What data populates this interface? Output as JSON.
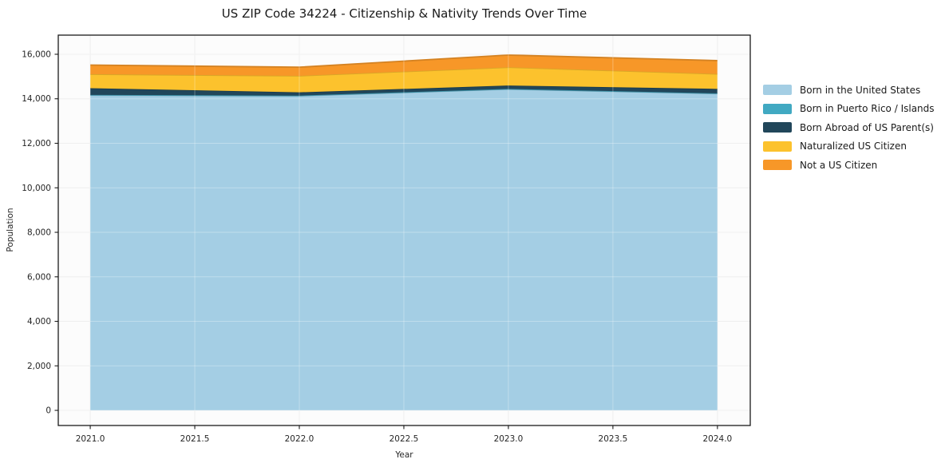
{
  "title": "US ZIP Code 34224 - Citizenship & Nativity Trends Over Time",
  "chart_data": {
    "type": "area",
    "stacked": true,
    "title": "US ZIP Code 34224 - Citizenship & Nativity Trends Over Time",
    "xlabel": "Year",
    "ylabel": "Population",
    "x": [
      2021,
      2022,
      2023,
      2024
    ],
    "series": [
      {
        "name": "Born in the United States",
        "color": "#a4cee4",
        "values": [
          14160,
          14130,
          14430,
          14230
        ]
      },
      {
        "name": "Born in Puerto Rico / Islands",
        "color": "#41a9c2",
        "values": [
          15,
          15,
          15,
          15
        ]
      },
      {
        "name": "Born Abroad of US Parent(s)",
        "color": "#21465a",
        "values": [
          300,
          145,
          150,
          200
        ]
      },
      {
        "name": "Naturalized US Citizen",
        "color": "#fcc22d",
        "values": [
          630,
          740,
          820,
          670
        ]
      },
      {
        "name": "Not a US Citizen",
        "color": "#f79728",
        "values": [
          410,
          390,
          550,
          600
        ]
      }
    ],
    "totals": [
      15515,
      15420,
      15965,
      15715
    ],
    "x_ticks": {
      "values": [
        2021.0,
        2021.5,
        2022.0,
        2022.5,
        2023.0,
        2023.5,
        2024.0
      ],
      "labels": [
        "2021.0",
        "2021.5",
        "2022.0",
        "2022.5",
        "2023.0",
        "2023.5",
        "2024.0"
      ]
    },
    "y_ticks": {
      "values": [
        0,
        2000,
        4000,
        6000,
        8000,
        10000,
        12000,
        14000,
        16000
      ],
      "labels": [
        "0",
        "2,000",
        "4,000",
        "6,000",
        "8,000",
        "10,000",
        "12,000",
        "14,000",
        "16,000"
      ]
    },
    "xlim": [
      2020.847,
      2024.157
    ],
    "ylim": [
      -680,
      16860
    ],
    "grid": true,
    "legend_position": "right-outside"
  },
  "colors": {
    "frame": "#1a1a1a",
    "grid": "#e9e9e9",
    "tick_text": "#262626",
    "plot_bg": "#fcfcfc"
  }
}
